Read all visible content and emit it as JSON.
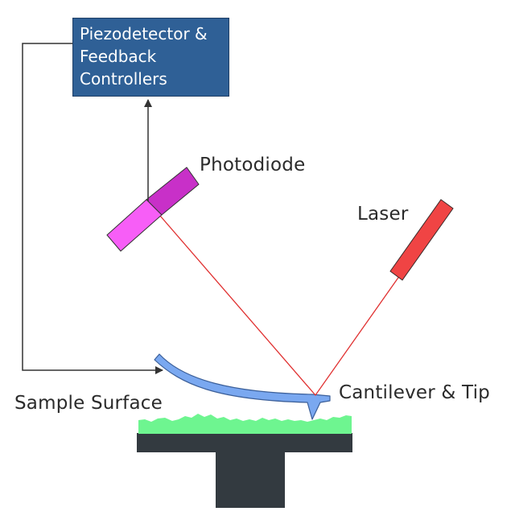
{
  "controller": {
    "lines": [
      "Piezodetector &",
      "Feedback",
      "Controllers"
    ]
  },
  "labels": {
    "photodiode": "Photodiode",
    "laser": "Laser",
    "sample_surface": "Sample Surface",
    "cantilever": "Cantilever & Tip"
  },
  "colors": {
    "controller_fill": "#2f6096",
    "photodiode_light": "#f75ef7",
    "photodiode_dark": "#c830c8",
    "laser_body": "#f04444",
    "laser_beam": "#e03030",
    "cantilever": "#7aa8f0",
    "sample": "#6ef590",
    "stage": "#333a40",
    "feedback_line": "#333333"
  }
}
